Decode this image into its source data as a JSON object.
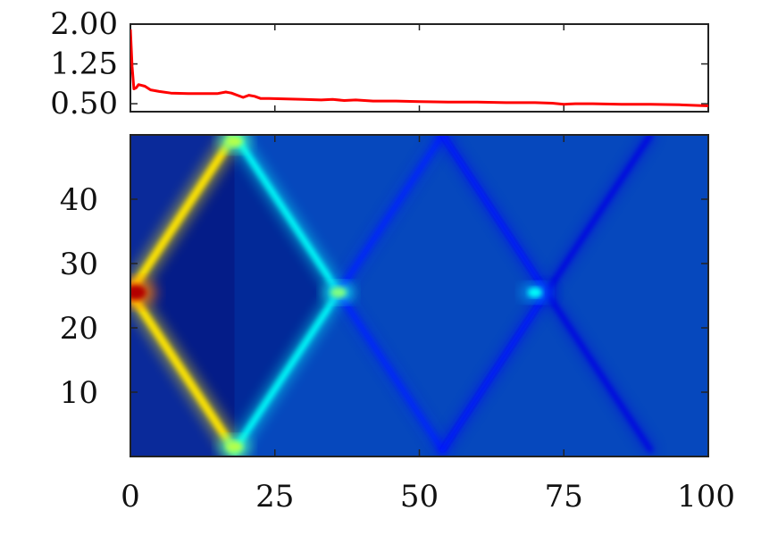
{
  "chart_data": [
    {
      "type": "line",
      "title": "",
      "xlabel": "",
      "ylabel": "",
      "xlim": [
        0,
        100
      ],
      "ylim": [
        0.35,
        2.0
      ],
      "yticks": [
        {
          "value": 2.0,
          "label": "2.00"
        },
        {
          "value": 1.25,
          "label": "1.25"
        },
        {
          "value": 0.5,
          "label": "0.50"
        }
      ],
      "series": [
        {
          "color": "#ff0000",
          "x": [
            0,
            0.3,
            0.6,
            1.0,
            1.4,
            1.8,
            2.5,
            3.5,
            5,
            7,
            10,
            13,
            15,
            16.5,
            17.5,
            18.5,
            19.5,
            20.5,
            21.5,
            22.5,
            24,
            27,
            30,
            33,
            35,
            37,
            39,
            42,
            46,
            50,
            55,
            60,
            65,
            70,
            73,
            75,
            77,
            80,
            85,
            90,
            95,
            100
          ],
          "y": [
            1.9,
            1.2,
            0.78,
            0.8,
            0.86,
            0.85,
            0.83,
            0.76,
            0.73,
            0.7,
            0.69,
            0.69,
            0.69,
            0.72,
            0.7,
            0.66,
            0.62,
            0.66,
            0.64,
            0.6,
            0.6,
            0.59,
            0.58,
            0.57,
            0.58,
            0.56,
            0.57,
            0.55,
            0.55,
            0.54,
            0.53,
            0.53,
            0.52,
            0.52,
            0.51,
            0.49,
            0.5,
            0.5,
            0.49,
            0.49,
            0.48,
            0.46
          ]
        }
      ]
    },
    {
      "type": "heatmap",
      "title": "",
      "xlabel": "",
      "ylabel": "",
      "xlim": [
        0,
        100
      ],
      "ylim": [
        0,
        50
      ],
      "xticks": [
        {
          "value": 0,
          "label": "0"
        },
        {
          "value": 25,
          "label": "25"
        },
        {
          "value": 50,
          "label": "50"
        },
        {
          "value": 75,
          "label": "75"
        },
        {
          "value": 100,
          "label": "100"
        }
      ],
      "yticks": [
        {
          "value": 10,
          "label": "10"
        },
        {
          "value": 20,
          "label": "20"
        },
        {
          "value": 30,
          "label": "30"
        },
        {
          "value": 40,
          "label": "40"
        }
      ],
      "colormap": "jet",
      "background_color": "#0a2a9a",
      "center_y": 25.5,
      "features": [
        {
          "kind": "ridge",
          "points": [
            [
              0,
              25.5
            ],
            [
              18,
              50
            ]
          ],
          "intensity": 0.65
        },
        {
          "kind": "ridge",
          "points": [
            [
              0,
              25.5
            ],
            [
              18,
              1
            ]
          ],
          "intensity": 0.65
        },
        {
          "kind": "ridge",
          "points": [
            [
              18,
              50
            ],
            [
              36,
              25.5
            ]
          ],
          "intensity": 0.38
        },
        {
          "kind": "ridge",
          "points": [
            [
              18,
              1
            ],
            [
              36,
              25.5
            ]
          ],
          "intensity": 0.38
        },
        {
          "kind": "ridge",
          "points": [
            [
              36,
              25.5
            ],
            [
              54,
              50
            ]
          ],
          "intensity": 0.16
        },
        {
          "kind": "ridge",
          "points": [
            [
              36,
              25.5
            ],
            [
              54,
              1
            ]
          ],
          "intensity": 0.16
        },
        {
          "kind": "ridge",
          "points": [
            [
              54,
              50
            ],
            [
              72,
              25.5
            ]
          ],
          "intensity": 0.14
        },
        {
          "kind": "ridge",
          "points": [
            [
              54,
              1
            ],
            [
              72,
              25.5
            ]
          ],
          "intensity": 0.14
        },
        {
          "kind": "ridge",
          "points": [
            [
              72,
              25.5
            ],
            [
              90,
              50
            ]
          ],
          "intensity": 0.1
        },
        {
          "kind": "ridge",
          "points": [
            [
              72,
              25.5
            ],
            [
              90,
              1
            ]
          ],
          "intensity": 0.1
        },
        {
          "kind": "band",
          "from_x": 2,
          "to_x": 100,
          "y": 25.5,
          "intensity": 0.32
        },
        {
          "kind": "spot",
          "x": 0.8,
          "y": 25.5,
          "intensity": 0.95
        },
        {
          "kind": "spot",
          "x": 18,
          "y": 49,
          "intensity": 0.55
        },
        {
          "kind": "spot",
          "x": 18,
          "y": 1.5,
          "intensity": 0.55
        },
        {
          "kind": "spot",
          "x": 36,
          "y": 25.5,
          "intensity": 0.5
        },
        {
          "kind": "spot",
          "x": 70,
          "y": 25.5,
          "intensity": 0.38
        }
      ]
    }
  ]
}
